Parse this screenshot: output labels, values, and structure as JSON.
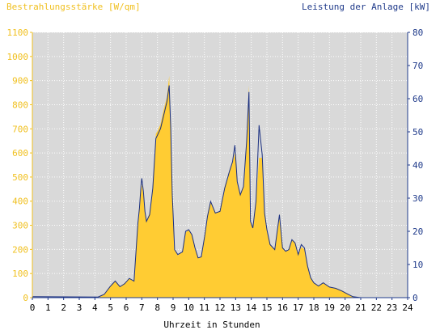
{
  "colors": {
    "left_axis": "#f0c020",
    "right_axis": "#1f3a8a",
    "plot_bg": "#d9d9d9",
    "area_fill": "#ffcc33",
    "line": "#1a2f80",
    "grid": "#ffffff",
    "x_axis_text": "#000000"
  },
  "chart_data": {
    "type": "area",
    "left_axis": {
      "label": "Bestrahlungsstärke [W/qm]",
      "ylim": [
        0,
        1100
      ],
      "ticks": [
        0,
        100,
        200,
        300,
        400,
        500,
        600,
        700,
        800,
        900,
        1000,
        1100
      ]
    },
    "right_axis": {
      "label": "Leistung der Anlage [kW]",
      "ylim": [
        0,
        80
      ],
      "ticks": [
        0,
        10,
        20,
        30,
        40,
        50,
        60,
        70,
        80
      ]
    },
    "x_axis": {
      "label": "Uhrzeit in Stunden",
      "xlim": [
        0,
        24
      ],
      "ticks": [
        0,
        1,
        2,
        3,
        4,
        5,
        6,
        7,
        8,
        9,
        10,
        11,
        12,
        13,
        14,
        15,
        16,
        17,
        18,
        19,
        20,
        21,
        22,
        23,
        24
      ]
    },
    "grid": true,
    "series": [
      {
        "axis": "left",
        "x": [
          0,
          4.2,
          4.6,
          5.0,
          5.3,
          5.6,
          5.9,
          6.2,
          6.5,
          6.75,
          6.85,
          6.95,
          7.0,
          7.1,
          7.2,
          7.3,
          7.5,
          7.7,
          7.9,
          8.0,
          8.2,
          8.4,
          8.6,
          8.75,
          8.85,
          8.95,
          9.1,
          9.3,
          9.6,
          9.8,
          10.0,
          10.2,
          10.4,
          10.6,
          10.8,
          11.0,
          11.2,
          11.4,
          11.7,
          12.0,
          12.3,
          12.6,
          12.8,
          12.95,
          13.1,
          13.3,
          13.5,
          13.7,
          13.85,
          13.95,
          14.1,
          14.3,
          14.5,
          14.7,
          14.85,
          15.0,
          15.2,
          15.5,
          15.8,
          16.0,
          16.2,
          16.4,
          16.6,
          16.8,
          17.0,
          17.2,
          17.4,
          17.6,
          17.8,
          18.0,
          18.3,
          18.6,
          19.0,
          19.4,
          19.8,
          20.2,
          20.5,
          21.0,
          24
        ],
        "values": [
          0,
          0,
          15,
          50,
          70,
          45,
          60,
          80,
          70,
          300,
          370,
          440,
          470,
          430,
          360,
          320,
          350,
          450,
          680,
          690,
          720,
          780,
          830,
          920,
          700,
          420,
          200,
          175,
          190,
          270,
          280,
          260,
          210,
          165,
          170,
          250,
          340,
          400,
          350,
          360,
          460,
          520,
          560,
          600,
          480,
          430,
          460,
          650,
          880,
          320,
          290,
          400,
          580,
          580,
          350,
          280,
          220,
          200,
          330,
          210,
          190,
          200,
          240,
          230,
          180,
          210,
          200,
          130,
          80,
          60,
          50,
          60,
          45,
          40,
          30,
          15,
          5,
          0,
          0
        ]
      },
      {
        "axis": "right",
        "x": [
          0,
          4.2,
          4.6,
          5.0,
          5.3,
          5.6,
          5.9,
          6.2,
          6.5,
          6.75,
          6.85,
          6.95,
          7.0,
          7.1,
          7.2,
          7.3,
          7.5,
          7.7,
          7.9,
          8.0,
          8.2,
          8.4,
          8.6,
          8.75,
          8.85,
          8.95,
          9.1,
          9.3,
          9.6,
          9.8,
          10.0,
          10.2,
          10.4,
          10.6,
          10.8,
          11.0,
          11.2,
          11.4,
          11.7,
          12.0,
          12.3,
          12.6,
          12.8,
          12.95,
          13.1,
          13.3,
          13.5,
          13.7,
          13.85,
          13.95,
          14.1,
          14.3,
          14.5,
          14.7,
          14.85,
          15.0,
          15.2,
          15.5,
          15.8,
          16.0,
          16.2,
          16.4,
          16.6,
          16.8,
          17.0,
          17.2,
          17.4,
          17.6,
          17.8,
          18.0,
          18.3,
          18.6,
          19.0,
          19.4,
          19.8,
          20.2,
          20.5,
          21.0,
          24
        ],
        "values": [
          0.3,
          0.2,
          1.0,
          3.5,
          5.0,
          3.3,
          4.2,
          5.8,
          5.0,
          22.5,
          27.0,
          34.0,
          36.0,
          32.0,
          26.0,
          23.0,
          25.0,
          33.0,
          48.0,
          49.0,
          51.0,
          55.0,
          59.0,
          64.0,
          51.0,
          31.0,
          14.5,
          13.0,
          13.8,
          20.0,
          20.5,
          19.0,
          15.0,
          12.0,
          12.3,
          18.0,
          24.5,
          29.0,
          25.5,
          26.0,
          33.0,
          38.0,
          41.0,
          46.0,
          35.0,
          31.0,
          33.5,
          47.0,
          62.0,
          23.0,
          21.0,
          29.0,
          52.0,
          43.0,
          25.5,
          20.5,
          16.0,
          14.5,
          25.0,
          15.0,
          14.0,
          14.5,
          17.5,
          16.5,
          13.0,
          16.0,
          15.0,
          9.5,
          6.0,
          4.5,
          3.5,
          4.5,
          3.2,
          2.8,
          2.0,
          1.0,
          0.3,
          0.0,
          0.0
        ]
      }
    ]
  }
}
